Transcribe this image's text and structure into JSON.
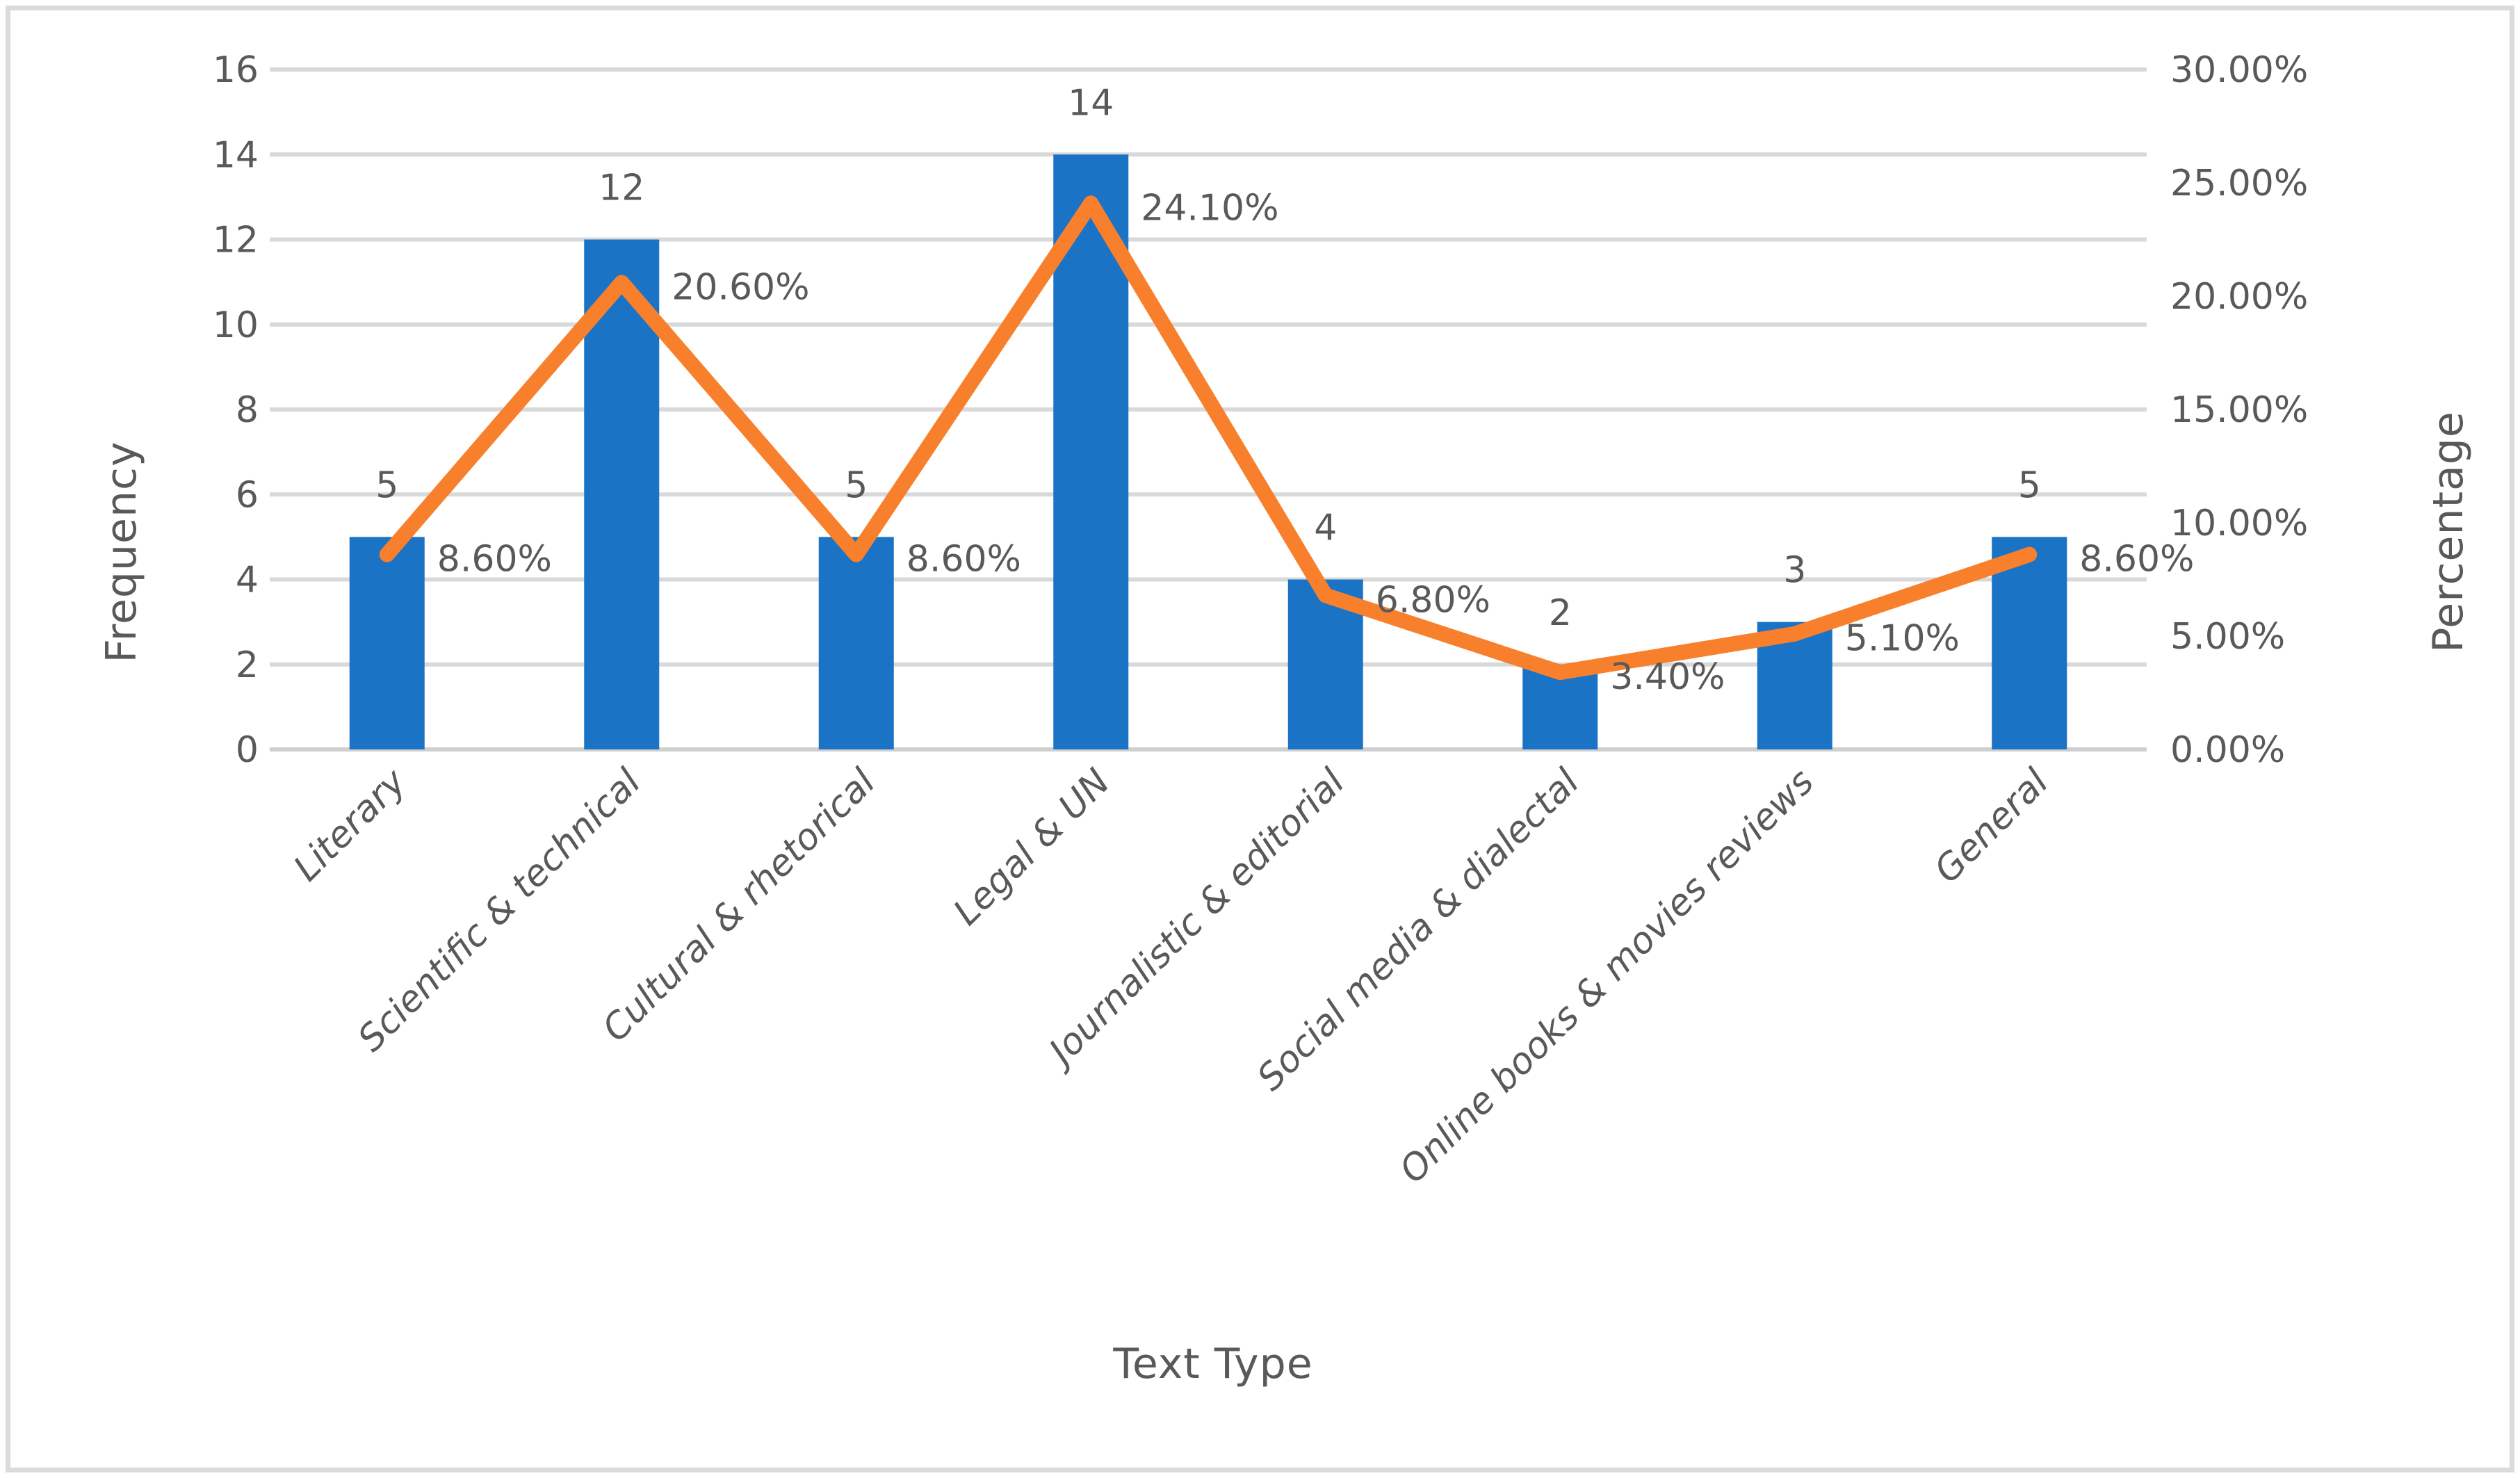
{
  "style": {
    "bar_color": "#1B73C6",
    "line_color": "#F8802D",
    "text_color": "#595959",
    "gridline_color": "#D9D9D9",
    "axis_line_color": "#CFCFCF",
    "frame_border_color": "#DBDBDB",
    "background_color": "#FFFFFF"
  },
  "chart_data": {
    "type": "combo-bar-line",
    "title": "",
    "categories": [
      "Literary",
      "Scientific & technical",
      "Cultural & rhetorical",
      "Legal & UN",
      "Journalistic & editorial",
      "Social media & dialectal",
      "Online books & movies reviews",
      "General"
    ],
    "series": [
      {
        "name": "Frequency",
        "type": "bar",
        "axis": "primary",
        "values": [
          5,
          12,
          5,
          14,
          4,
          2,
          3,
          5
        ],
        "data_labels": [
          "5",
          "12",
          "5",
          "14",
          "4",
          "2",
          "3",
          "5"
        ],
        "color": "#1B73C6"
      },
      {
        "name": "Percentage",
        "type": "line",
        "axis": "secondary",
        "values": [
          8.6,
          20.6,
          8.6,
          24.1,
          6.8,
          3.4,
          5.1,
          8.6
        ],
        "data_labels": [
          "8.60%",
          "20.60%",
          "8.60%",
          "24.10%",
          "6.80%",
          "3.40%",
          "5.10%",
          "8.60%"
        ],
        "color": "#F8802D"
      }
    ],
    "primary_axis": {
      "title": "Frequency",
      "min": 0,
      "max": 16,
      "step": 2,
      "ticks": [
        "0",
        "2",
        "4",
        "6",
        "8",
        "10",
        "12",
        "14",
        "16"
      ]
    },
    "secondary_axis": {
      "title": "Percentage",
      "min": 0,
      "max": 30,
      "step": 5,
      "ticks": [
        "0.00%",
        "5.00%",
        "10.00%",
        "15.00%",
        "20.00%",
        "25.00%",
        "30.00%"
      ]
    },
    "x_axis": {
      "title": "Text Type"
    },
    "grid": true,
    "legend": "none"
  }
}
